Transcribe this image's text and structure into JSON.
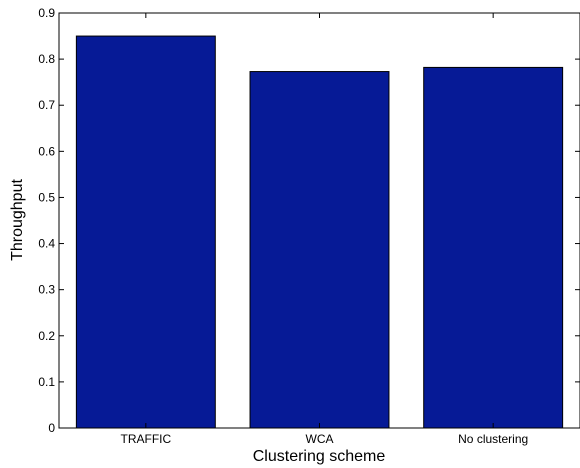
{
  "chart_data": {
    "type": "bar",
    "categories": [
      "TRAFFIC",
      "WCA",
      "No clustering"
    ],
    "values": [
      0.85,
      0.773,
      0.782
    ],
    "title": "",
    "xlabel": "Clustering scheme",
    "ylabel": "Throughput",
    "ylim": [
      0,
      0.9
    ],
    "yticks": [
      0,
      0.1,
      0.2,
      0.3,
      0.4,
      0.5,
      0.6,
      0.7,
      0.8,
      0.9
    ],
    "ytick_labels": [
      "0",
      "0.1",
      "0.2",
      "0.3",
      "0.4",
      "0.5",
      "0.6",
      "0.7",
      "0.8",
      "0.9"
    ],
    "grid": false,
    "legend": "none",
    "colors": {
      "bar_fill": "#061a96",
      "bar_edge": "#000000",
      "axes": "#000000",
      "background": "#ffffff"
    }
  }
}
